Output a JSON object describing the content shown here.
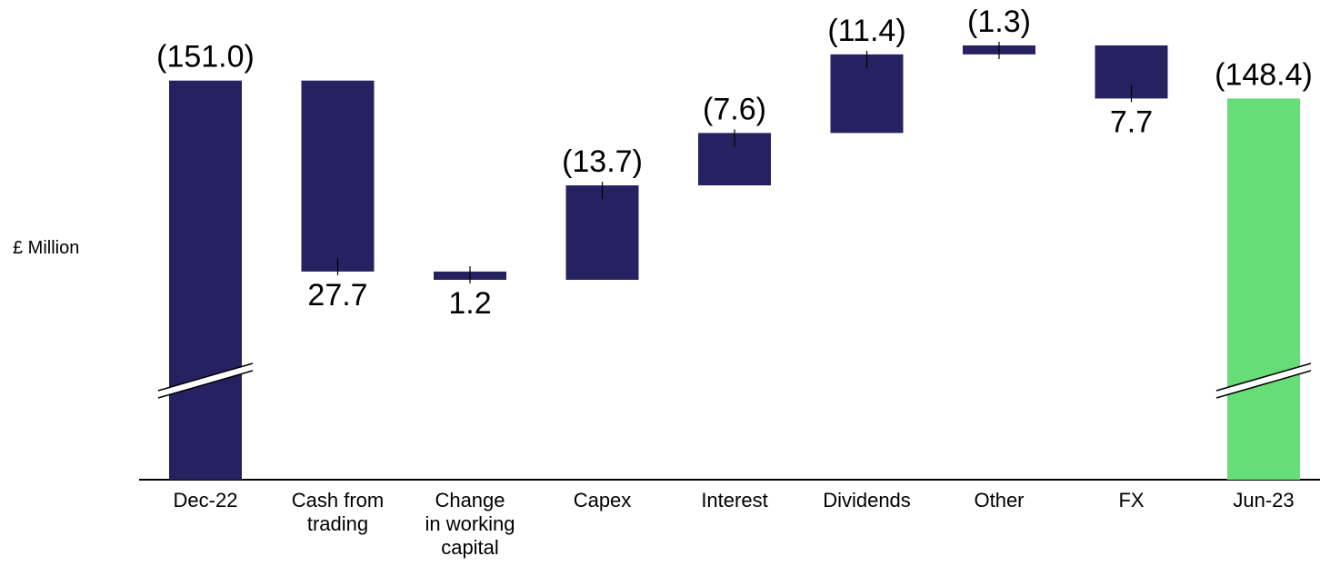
{
  "chart_data": {
    "type": "waterfall",
    "y_label": "£ Million",
    "categories": [
      "Dec-22",
      "Cash from\ntrading",
      "Change\nin working\ncapital",
      "Capex",
      "Interest",
      "Dividends",
      "Other",
      "FX",
      "Jun-23"
    ],
    "values": [
      -151.0,
      27.7,
      1.2,
      -13.7,
      -7.6,
      -11.4,
      -1.3,
      7.7,
      -148.4
    ],
    "value_labels": [
      "(151.0)",
      "27.7",
      "1.2",
      "(13.7)",
      "(7.6)",
      "(11.4)",
      "(1.3)",
      "7.7",
      "(148.4)"
    ],
    "colors": [
      "#262262",
      "#262262",
      "#262262",
      "#262262",
      "#262262",
      "#262262",
      "#262262",
      "#262262",
      "#66dd77"
    ]
  }
}
